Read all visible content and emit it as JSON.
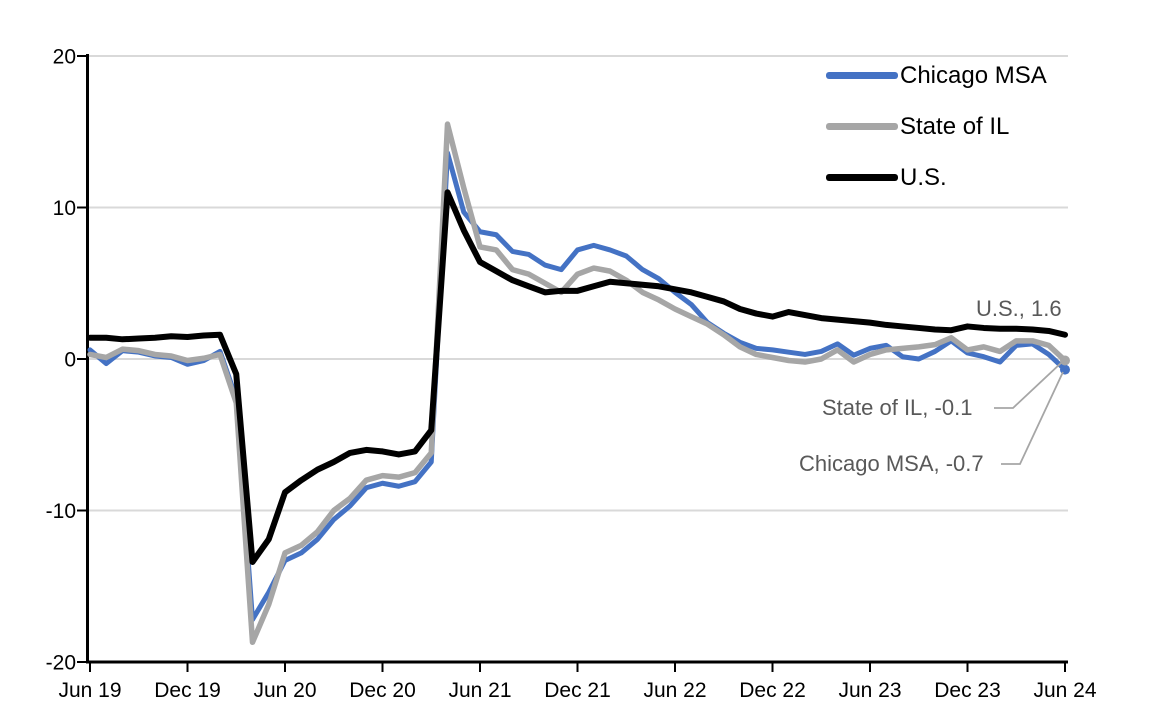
{
  "chart_data": {
    "type": "line",
    "title": "",
    "x_start": "Jun 19",
    "x_end": "Jun 24",
    "x_step": "1 month",
    "ylim": [
      -20,
      20
    ],
    "grid": "horizontal",
    "legend_position": "top-right-inside",
    "y_ticks": {
      "values": [
        20,
        10,
        0,
        -10,
        -20
      ],
      "labels": [
        "20",
        "10",
        "0",
        "-10",
        "-20"
      ]
    },
    "x_ticks": {
      "month_offsets": [
        0,
        6,
        12,
        18,
        24,
        30,
        36,
        42,
        48,
        54,
        60
      ],
      "labels": [
        "Jun 19",
        "Dec 19",
        "Jun 20",
        "Dec 20",
        "Jun 21",
        "Dec 21",
        "Jun 22",
        "Dec 22",
        "Jun 23",
        "Dec 23",
        "Jun 24"
      ]
    },
    "series": [
      {
        "name": "Chicago MSA",
        "color": "#4472C4",
        "end_dot": true,
        "last_value": -0.7,
        "values": [
          0.6,
          -0.3,
          0.55,
          0.45,
          0.2,
          0.1,
          -0.35,
          -0.1,
          0.5,
          -2.6,
          -17.2,
          -15.4,
          -13.3,
          -12.8,
          -11.9,
          -10.6,
          -9.7,
          -8.5,
          -8.2,
          -8.4,
          -8.1,
          -6.8,
          13.6,
          9.7,
          8.4,
          8.2,
          7.1,
          6.9,
          6.2,
          5.9,
          7.2,
          7.5,
          7.2,
          6.8,
          5.9,
          5.3,
          4.4,
          3.6,
          2.4,
          1.7,
          1.1,
          0.7,
          0.6,
          0.45,
          0.3,
          0.5,
          1.0,
          0.25,
          0.7,
          0.9,
          0.15,
          0.0,
          0.5,
          1.2,
          0.4,
          0.15,
          -0.2,
          0.9,
          1.0,
          0.3,
          -0.7
        ]
      },
      {
        "name": "State of IL",
        "color": "#A6A6A6",
        "end_dot": true,
        "last_value": -0.1,
        "values": [
          0.3,
          0.1,
          0.65,
          0.55,
          0.3,
          0.2,
          -0.1,
          0.05,
          0.3,
          -2.9,
          -18.7,
          -16.2,
          -12.8,
          -12.3,
          -11.4,
          -10.0,
          -9.2,
          -8.0,
          -7.7,
          -7.8,
          -7.5,
          -6.2,
          15.5,
          11.3,
          7.4,
          7.2,
          5.9,
          5.6,
          5.0,
          4.4,
          5.6,
          6.0,
          5.8,
          5.2,
          4.4,
          3.9,
          3.3,
          2.8,
          2.3,
          1.6,
          0.8,
          0.3,
          0.1,
          -0.1,
          -0.2,
          0.0,
          0.6,
          -0.2,
          0.3,
          0.6,
          0.7,
          0.8,
          0.95,
          1.4,
          0.6,
          0.8,
          0.5,
          1.2,
          1.2,
          0.9,
          -0.1
        ]
      },
      {
        "name": "U.S.",
        "color": "#000000",
        "end_dot": false,
        "last_value": 1.6,
        "values": [
          1.4,
          1.4,
          1.3,
          1.35,
          1.4,
          1.5,
          1.45,
          1.55,
          1.6,
          -1.0,
          -13.4,
          -11.9,
          -8.8,
          -8.0,
          -7.3,
          -6.8,
          -6.2,
          -6.0,
          -6.1,
          -6.3,
          -6.1,
          -4.7,
          11.0,
          8.5,
          6.4,
          5.8,
          5.2,
          4.8,
          4.4,
          4.5,
          4.5,
          4.8,
          5.1,
          5.0,
          4.9,
          4.8,
          4.6,
          4.4,
          4.1,
          3.8,
          3.3,
          3.0,
          2.8,
          3.1,
          2.9,
          2.7,
          2.6,
          2.5,
          2.4,
          2.25,
          2.15,
          2.05,
          1.95,
          1.9,
          2.15,
          2.05,
          2.0,
          2.0,
          1.95,
          1.85,
          1.6
        ]
      }
    ],
    "annotations": {
      "us": "U.S., 1.6",
      "il": "State of IL, -0.1",
      "chicago": "Chicago MSA, -0.7"
    },
    "colors": {
      "background": "#FFFFFF",
      "gridline": "#D9D9D9",
      "axis": "#000000",
      "tick_label": "#000000",
      "annotation_text": "#595959",
      "leader_line": "#A6A6A6"
    }
  }
}
